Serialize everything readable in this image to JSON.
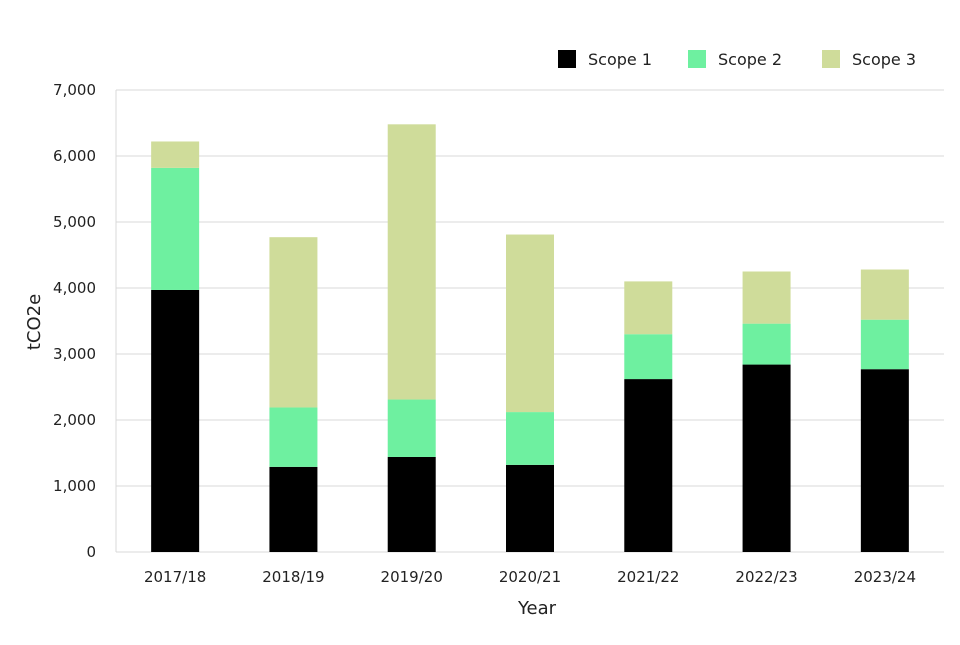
{
  "chart_data": {
    "type": "bar",
    "stacked": true,
    "title": "",
    "xlabel": "Year",
    "ylabel": "tCO2e",
    "categories": [
      "2017/18",
      "2018/19",
      "2019/20",
      "2020/21",
      "2021/22",
      "2022/23",
      "2023/24"
    ],
    "series": [
      {
        "name": "Scope 1",
        "color": "#000000",
        "values": [
          3970,
          1290,
          1440,
          1320,
          2620,
          2840,
          2770
        ]
      },
      {
        "name": "Scope 2",
        "color": "#6EF0A0",
        "values": [
          1850,
          900,
          870,
          800,
          680,
          620,
          750
        ]
      },
      {
        "name": "Scope 3",
        "color": "#CFDC9A",
        "values": [
          400,
          2580,
          4170,
          2690,
          800,
          790,
          760
        ]
      }
    ],
    "ylim": [
      0,
      7000
    ],
    "yticks": [
      {
        "value": 0,
        "label": "0"
      },
      {
        "value": 1000,
        "label": "1,000"
      },
      {
        "value": 2000,
        "label": "2,000"
      },
      {
        "value": 3000,
        "label": "3,000"
      },
      {
        "value": 4000,
        "label": "4,000"
      },
      {
        "value": 5000,
        "label": "5,000"
      },
      {
        "value": 6000,
        "label": "6,000"
      },
      {
        "value": 7000,
        "label": "7,000"
      }
    ],
    "grid": true,
    "legend": "top-right"
  }
}
